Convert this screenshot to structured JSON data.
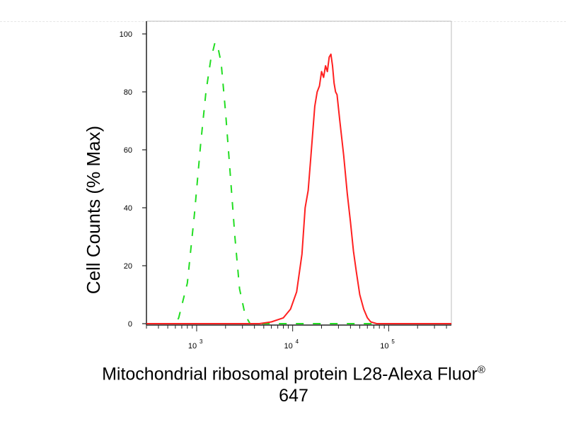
{
  "chart_data": {
    "type": "line",
    "title": "",
    "xlabel_line1": "Mitochondrial ribosomal protein L28-Alexa Fluor",
    "xlabel_sup": "®",
    "xlabel_line2": "647",
    "ylabel": "Cell Counts (% Max)",
    "x_scale": "log",
    "xlim": [
      300,
      450000
    ],
    "ylim": [
      0,
      100
    ],
    "yticks": [
      0,
      20,
      40,
      60,
      80,
      100
    ],
    "xticks": [
      {
        "base": "10",
        "exp": "3",
        "value": 1000
      },
      {
        "base": "10",
        "exp": "4",
        "value": 10000
      },
      {
        "base": "10",
        "exp": "5",
        "value": 100000
      }
    ],
    "grid": false,
    "legend": "none",
    "series": [
      {
        "style": "dashed",
        "color": "#22dd22",
        "points": [
          [
            300,
            0
          ],
          [
            600,
            0
          ],
          [
            650,
            2
          ],
          [
            800,
            14
          ],
          [
            950,
            38
          ],
          [
            1100,
            62
          ],
          [
            1250,
            80
          ],
          [
            1400,
            91
          ],
          [
            1550,
            97
          ],
          [
            1650,
            96
          ],
          [
            1800,
            90
          ],
          [
            2000,
            73
          ],
          [
            2200,
            55
          ],
          [
            2500,
            30
          ],
          [
            2800,
            12
          ],
          [
            3200,
            3
          ],
          [
            3600,
            0
          ],
          [
            450000,
            0
          ]
        ]
      },
      {
        "style": "solid",
        "color": "#ff2020",
        "points": [
          [
            300,
            0
          ],
          [
            4500,
            0
          ],
          [
            6000,
            0.6
          ],
          [
            8000,
            2
          ],
          [
            9500,
            5
          ],
          [
            11000,
            11
          ],
          [
            12500,
            24
          ],
          [
            13500,
            40
          ],
          [
            14500,
            46
          ],
          [
            15500,
            58
          ],
          [
            17000,
            75
          ],
          [
            18000,
            80
          ],
          [
            19000,
            82
          ],
          [
            20000,
            87
          ],
          [
            21000,
            85
          ],
          [
            22000,
            89
          ],
          [
            23000,
            87
          ],
          [
            24000,
            92
          ],
          [
            25000,
            93
          ],
          [
            26000,
            89
          ],
          [
            27000,
            83
          ],
          [
            28000,
            80
          ],
          [
            29000,
            79
          ],
          [
            31000,
            70
          ],
          [
            34000,
            58
          ],
          [
            37000,
            45
          ],
          [
            40000,
            35
          ],
          [
            43000,
            25
          ],
          [
            46000,
            18
          ],
          [
            50000,
            10
          ],
          [
            55000,
            5
          ],
          [
            60000,
            2
          ],
          [
            65000,
            0.6
          ],
          [
            75000,
            0
          ],
          [
            450000,
            0
          ]
        ]
      }
    ]
  }
}
